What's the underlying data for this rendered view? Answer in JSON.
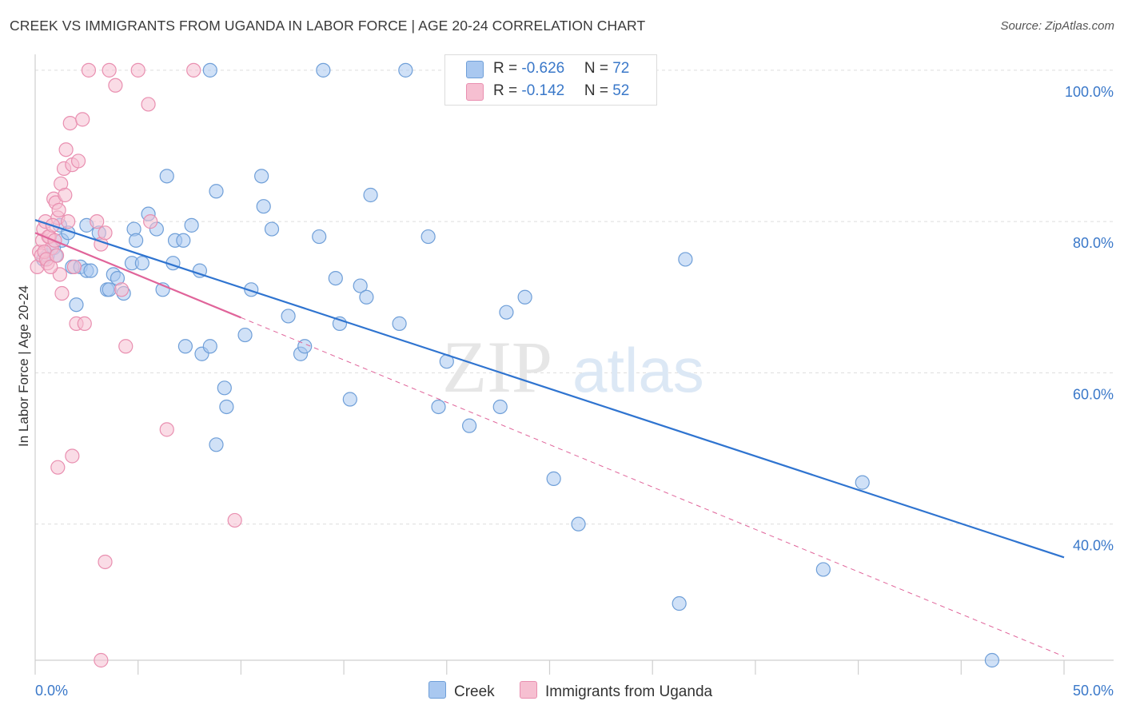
{
  "header": {
    "title": "CREEK VS IMMIGRANTS FROM UGANDA IN LABOR FORCE | AGE 20-24 CORRELATION CHART",
    "source": "Source: ZipAtlas.com"
  },
  "watermark": {
    "zip": "ZIP",
    "atlas": "atlas"
  },
  "legend": {
    "creek": {
      "r_label": "R = ",
      "r_value": "-0.626",
      "n_label": "N = ",
      "n_value": "72"
    },
    "uganda": {
      "r_label": "R = ",
      "r_value": "-0.142",
      "n_label": "N = ",
      "n_value": "52"
    }
  },
  "colors": {
    "creek_fill": "#a9c8f0",
    "creek_stroke": "#6f9fd8",
    "creek_line": "#2f74d0",
    "uganda_fill": "#f6bfd1",
    "uganda_stroke": "#e98fb0",
    "uganda_line": "#e0649a",
    "tick_text": "#3a78c9",
    "grid": "#dddddd"
  },
  "chart_data": {
    "type": "scatter",
    "title": "CREEK VS IMMIGRANTS FROM UGANDA IN LABOR FORCE | AGE 20-24 CORRELATION CHART",
    "xlabel": "",
    "ylabel": "In Labor Force | Age 20-24",
    "xlim": [
      0,
      50
    ],
    "ylim": [
      22,
      104
    ],
    "x_tick_labels": [
      {
        "value": 0,
        "label": "0.0%"
      },
      {
        "value": 50,
        "label": "50.0%"
      }
    ],
    "y_tick_labels": [
      {
        "value": 100,
        "label": "100.0%"
      },
      {
        "value": 80,
        "label": "80.0%"
      },
      {
        "value": 60,
        "label": "60.0%"
      },
      {
        "value": 40,
        "label": "40.0%"
      }
    ],
    "grid": true,
    "series": [
      {
        "name": "Creek",
        "points": [
          [
            0.4,
            75.0
          ],
          [
            0.6,
            75.5
          ],
          [
            0.9,
            76.5
          ],
          [
            1.2,
            79.5
          ],
          [
            1.3,
            77.5
          ],
          [
            1.8,
            74.0
          ],
          [
            2.0,
            69.0
          ],
          [
            2.2,
            74.0
          ],
          [
            2.5,
            73.5
          ],
          [
            2.7,
            73.5
          ],
          [
            3.1,
            78.5
          ],
          [
            3.5,
            71.0
          ],
          [
            3.8,
            73.0
          ],
          [
            4.0,
            72.5
          ],
          [
            4.3,
            70.5
          ],
          [
            4.7,
            74.5
          ],
          [
            4.8,
            79.0
          ],
          [
            5.5,
            81.0
          ],
          [
            5.9,
            79.0
          ],
          [
            6.4,
            86.0
          ],
          [
            6.7,
            74.5
          ],
          [
            6.8,
            77.5
          ],
          [
            7.2,
            77.5
          ],
          [
            7.6,
            79.5
          ],
          [
            7.3,
            63.5
          ],
          [
            8.0,
            73.5
          ],
          [
            8.1,
            62.5
          ],
          [
            8.5,
            63.5
          ],
          [
            8.8,
            84.0
          ],
          [
            9.2,
            58.0
          ],
          [
            9.3,
            55.5
          ],
          [
            8.8,
            50.5
          ],
          [
            10.2,
            65.0
          ],
          [
            10.5,
            71.0
          ],
          [
            11.0,
            86.0
          ],
          [
            11.1,
            82.0
          ],
          [
            11.5,
            79.0
          ],
          [
            12.3,
            67.5
          ],
          [
            12.9,
            62.5
          ],
          [
            13.1,
            63.5
          ],
          [
            13.8,
            78.0
          ],
          [
            14.6,
            72.5
          ],
          [
            14.8,
            66.5
          ],
          [
            15.3,
            56.5
          ],
          [
            15.8,
            71.5
          ],
          [
            16.1,
            70.0
          ],
          [
            16.3,
            83.5
          ],
          [
            17.7,
            66.5
          ],
          [
            19.1,
            78.0
          ],
          [
            19.6,
            55.5
          ],
          [
            20.0,
            61.5
          ],
          [
            21.1,
            53.0
          ],
          [
            22.6,
            55.5
          ],
          [
            22.9,
            68.0
          ],
          [
            23.8,
            70.0
          ],
          [
            25.2,
            46.0
          ],
          [
            26.4,
            40.0
          ],
          [
            31.6,
            75.0
          ],
          [
            31.3,
            29.5
          ],
          [
            38.3,
            34.0
          ],
          [
            40.2,
            45.5
          ],
          [
            46.5,
            22.0
          ],
          [
            8.5,
            100.0
          ],
          [
            18.0,
            100.0
          ],
          [
            14.0,
            100.0
          ],
          [
            2.5,
            79.5
          ],
          [
            1.6,
            78.5
          ],
          [
            3.6,
            71.0
          ],
          [
            1.0,
            75.5
          ],
          [
            5.2,
            74.5
          ],
          [
            6.2,
            71.0
          ],
          [
            4.9,
            77.5
          ]
        ]
      },
      {
        "name": "Immigrants from Uganda",
        "points": [
          [
            0.1,
            74.0
          ],
          [
            0.2,
            76.0
          ],
          [
            0.3,
            75.5
          ],
          [
            0.35,
            77.5
          ],
          [
            0.4,
            79.0
          ],
          [
            0.5,
            80.0
          ],
          [
            0.6,
            74.5
          ],
          [
            0.7,
            78.0
          ],
          [
            0.8,
            76.5
          ],
          [
            0.9,
            83.0
          ],
          [
            1.0,
            82.5
          ],
          [
            1.1,
            80.5
          ],
          [
            1.2,
            73.0
          ],
          [
            1.3,
            70.5
          ],
          [
            1.4,
            87.0
          ],
          [
            1.5,
            89.5
          ],
          [
            1.6,
            80.0
          ],
          [
            1.7,
            93.0
          ],
          [
            1.8,
            87.5
          ],
          [
            1.9,
            74.0
          ],
          [
            2.0,
            66.5
          ],
          [
            2.1,
            88.0
          ],
          [
            2.3,
            93.5
          ],
          [
            2.4,
            66.5
          ],
          [
            2.6,
            100.0
          ],
          [
            3.0,
            80.0
          ],
          [
            3.2,
            77.0
          ],
          [
            3.4,
            78.5
          ],
          [
            3.6,
            100.0
          ],
          [
            3.9,
            98.0
          ],
          [
            4.2,
            71.0
          ],
          [
            4.4,
            63.5
          ],
          [
            5.0,
            100.0
          ],
          [
            5.5,
            95.5
          ],
          [
            5.6,
            80.0
          ],
          [
            6.4,
            52.5
          ],
          [
            7.7,
            100.0
          ],
          [
            9.7,
            40.5
          ],
          [
            3.4,
            35.0
          ],
          [
            1.1,
            47.5
          ],
          [
            1.8,
            49.0
          ],
          [
            3.2,
            22.0
          ],
          [
            0.45,
            76.0
          ],
          [
            0.55,
            75.0
          ],
          [
            0.65,
            78.0
          ],
          [
            0.75,
            74.0
          ],
          [
            0.95,
            77.5
          ],
          [
            1.05,
            75.5
          ],
          [
            1.25,
            85.0
          ],
          [
            1.45,
            83.5
          ],
          [
            0.85,
            79.5
          ],
          [
            1.15,
            81.5
          ]
        ]
      }
    ],
    "trend_lines": [
      {
        "series": "Creek",
        "x": [
          0,
          50
        ],
        "y": [
          80.2,
          35.6
        ],
        "style": "solid"
      },
      {
        "series": "Immigrants from Uganda",
        "x": [
          0,
          10
        ],
        "y": [
          78.5,
          67.3
        ],
        "style": "solid"
      },
      {
        "series": "Immigrants from Uganda",
        "x": [
          10,
          50
        ],
        "y": [
          67.3,
          22.5
        ],
        "style": "dashed"
      }
    ]
  },
  "bottom_legend": {
    "creek_label": "Creek",
    "uganda_label": "Immigrants from Uganda"
  }
}
